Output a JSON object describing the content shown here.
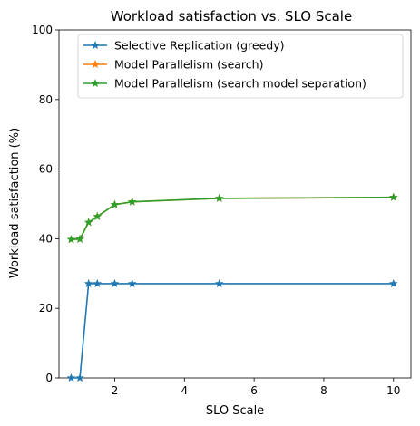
{
  "chart_data": {
    "type": "line",
    "title": "Workload satisfaction vs. SLO Scale",
    "xlabel": "SLO Scale",
    "ylabel": "Workload satisfaction (%)",
    "xlim": [
      0.4,
      10.5
    ],
    "ylim": [
      0,
      100
    ],
    "xticks": [
      2,
      4,
      6,
      8,
      10
    ],
    "yticks": [
      0,
      20,
      40,
      60,
      80,
      100
    ],
    "grid": false,
    "legend_position": "top-right",
    "series": [
      {
        "name": "Selective Replication (greedy)",
        "color": "#1f77b4",
        "marker": "star",
        "x": [
          0.75,
          1.0,
          1.25,
          1.5,
          2.0,
          2.5,
          5.0,
          10.0
        ],
        "y": [
          0,
          0,
          27.1,
          27.1,
          27.1,
          27.1,
          27.1,
          27.1
        ]
      },
      {
        "name": "Model Parallelism (search)",
        "color": "#ff7f0e",
        "marker": "star",
        "x": [
          0.75,
          1.0,
          1.25,
          1.5,
          2.0,
          2.5,
          5.0,
          10.0
        ],
        "y": [
          39.8,
          39.9,
          44.7,
          46.4,
          49.8,
          50.6,
          51.6,
          51.9
        ]
      },
      {
        "name": "Model Parallelism (search model separation)",
        "color": "#2ca02c",
        "marker": "star",
        "x": [
          0.75,
          1.0,
          1.25,
          1.5,
          2.0,
          2.5,
          5.0,
          10.0
        ],
        "y": [
          39.8,
          39.9,
          44.7,
          46.4,
          49.8,
          50.6,
          51.6,
          51.9
        ]
      }
    ]
  }
}
